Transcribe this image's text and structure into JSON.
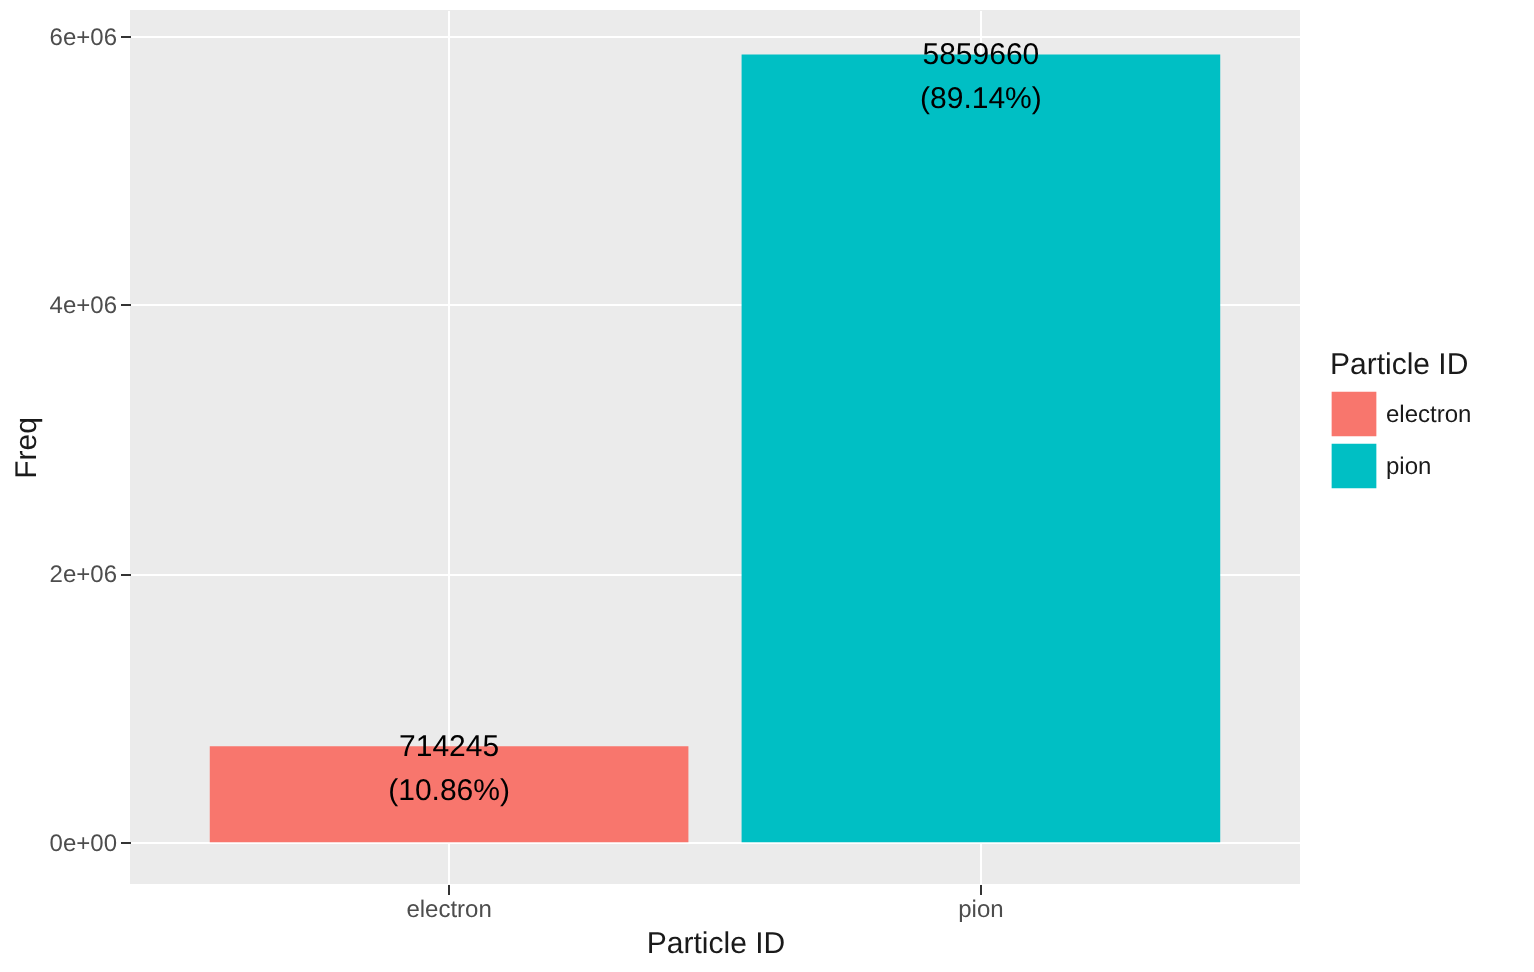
{
  "chart_data": {
    "type": "bar",
    "xlabel": "Particle ID",
    "ylabel": "Freq",
    "legend_title": "Particle ID",
    "categories": [
      "electron",
      "pion"
    ],
    "series": [
      {
        "name": "electron",
        "color": "#f8766d",
        "values": [
          714245,
          null
        ],
        "value_labels": [
          "714245\n(10.86%)",
          null
        ]
      },
      {
        "name": "pion",
        "color": "#00bfc4",
        "values": [
          null,
          5859660
        ],
        "value_labels": [
          null,
          "5859660\n(89.14%)"
        ]
      }
    ],
    "ylim": [
      -310000,
      6190000
    ],
    "yticks": [
      {
        "value": 0,
        "label": "0e+00"
      },
      {
        "value": 2000000,
        "label": "2e+06"
      },
      {
        "value": 4000000,
        "label": "4e+06"
      },
      {
        "value": 6000000,
        "label": "6e+06"
      }
    ],
    "grid": true,
    "legend": "right"
  }
}
